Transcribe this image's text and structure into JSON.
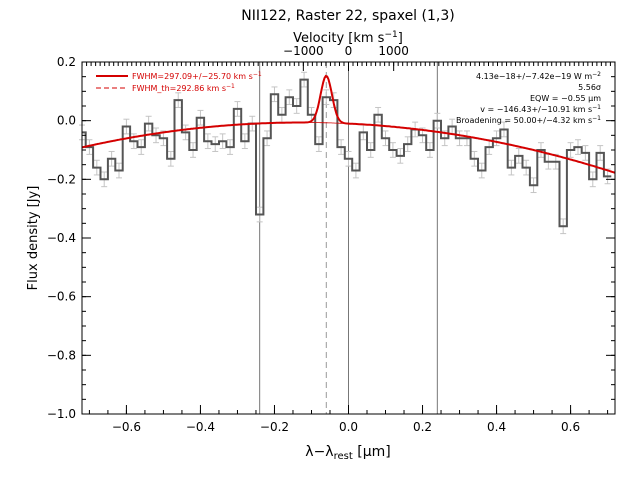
{
  "chart_data": {
    "type": "line",
    "title": "NII122, Raster 22, spaxel (1,3)",
    "xlabel": "λ−λ",
    "xlabel_sub": "rest",
    "xlabel_unit": " [μm]",
    "ylabel": "Flux density [Jy]",
    "top_axis_label": "Velocity [km s",
    "top_axis_label_exp": "−1",
    "top_axis_label_end": "]",
    "xlim": [
      -0.72,
      0.72
    ],
    "ylim": [
      -1.0,
      0.2
    ],
    "x_ticks": [
      -0.6,
      -0.4,
      -0.2,
      0.0,
      0.2,
      0.4,
      0.6
    ],
    "x_tick_labels": [
      "−0.6",
      "−0.4",
      "−0.2",
      "0.0",
      "0.2",
      "0.4",
      "0.6"
    ],
    "y_ticks": [
      -1.0,
      -0.8,
      -0.6,
      -0.4,
      -0.2,
      0.0,
      0.2
    ],
    "y_tick_labels": [
      "−1.0",
      "−0.8",
      "−0.6",
      "−0.4",
      "−0.2",
      "0.0",
      "0.2"
    ],
    "top_ticks_velocity": [
      -1000,
      0,
      1000
    ],
    "top_tick_labels": [
      "−1000",
      "0",
      "1000"
    ],
    "top_axis_um_per_kms": 0.000122,
    "grid": false,
    "vertical_lines": [
      -0.24,
      0.0,
      0.24
    ],
    "center_line": -0.06,
    "series": [
      {
        "type": "step",
        "color": "#555555",
        "x": [
          -0.72,
          -0.7,
          -0.68,
          -0.66,
          -0.64,
          -0.62,
          -0.6,
          -0.58,
          -0.56,
          -0.54,
          -0.52,
          -0.5,
          -0.48,
          -0.46,
          -0.44,
          -0.42,
          -0.4,
          -0.38,
          -0.36,
          -0.34,
          -0.32,
          -0.3,
          -0.28,
          -0.26,
          -0.24,
          -0.22,
          -0.2,
          -0.18,
          -0.16,
          -0.14,
          -0.12,
          -0.1,
          -0.08,
          -0.06,
          -0.04,
          -0.02,
          0.0,
          0.02,
          0.04,
          0.06,
          0.08,
          0.1,
          0.12,
          0.14,
          0.16,
          0.18,
          0.2,
          0.22,
          0.24,
          0.26,
          0.28,
          0.3,
          0.32,
          0.34,
          0.36,
          0.38,
          0.4,
          0.42,
          0.44,
          0.46,
          0.48,
          0.5,
          0.52,
          0.54,
          0.56,
          0.58,
          0.6,
          0.62,
          0.64,
          0.66,
          0.68,
          0.7
        ],
        "y": [
          -0.04,
          -0.09,
          -0.16,
          -0.2,
          -0.13,
          -0.17,
          -0.02,
          -0.07,
          -0.09,
          -0.01,
          -0.05,
          -0.06,
          -0.13,
          0.07,
          -0.04,
          -0.1,
          0.01,
          -0.07,
          -0.08,
          -0.07,
          -0.09,
          0.04,
          -0.07,
          -0.01,
          -0.32,
          -0.06,
          0.09,
          0.02,
          0.08,
          0.05,
          0.14,
          0.02,
          -0.08,
          0.08,
          0.07,
          -0.09,
          -0.13,
          -0.17,
          -0.04,
          -0.1,
          0.02,
          -0.06,
          -0.1,
          -0.12,
          -0.08,
          -0.03,
          -0.05,
          -0.1,
          0.0,
          -0.06,
          -0.02,
          -0.06,
          -0.06,
          -0.13,
          -0.17,
          -0.09,
          -0.06,
          -0.03,
          -0.16,
          -0.12,
          -0.16,
          -0.22,
          -0.1,
          -0.14,
          -0.14,
          -0.36,
          -0.1,
          -0.09,
          -0.11,
          -0.2,
          -0.11,
          -0.19
        ],
        "err": 0.025
      },
      {
        "type": "line",
        "color": "#d40000",
        "label": "FWHM=297.09+/−25.70 km s",
        "label_exp": "−1",
        "dash": false,
        "baseline": {
          "a": -0.01,
          "b": -0.06,
          "c": -0.24
        },
        "gaussian": {
          "amp": 0.16,
          "center": -0.06,
          "fwhm": 0.036
        }
      },
      {
        "type": "line",
        "color": "#d40000",
        "label": "FWHM_th=292.86 km s",
        "label_exp": "−1",
        "dash": true
      }
    ],
    "annotations": [
      {
        "text": "4.13e−18+/−7.42e−19 W m",
        "exp": "−2"
      },
      {
        "text": "5.56σ",
        "exp": ""
      },
      {
        "text": "EQW = −0.55 μm",
        "exp": ""
      },
      {
        "text": "v = −146.43+/−10.91 km s",
        "exp": "−1"
      },
      {
        "text": "Broadening = 50.00+/−4.32 km s",
        "exp": "−1"
      }
    ]
  }
}
